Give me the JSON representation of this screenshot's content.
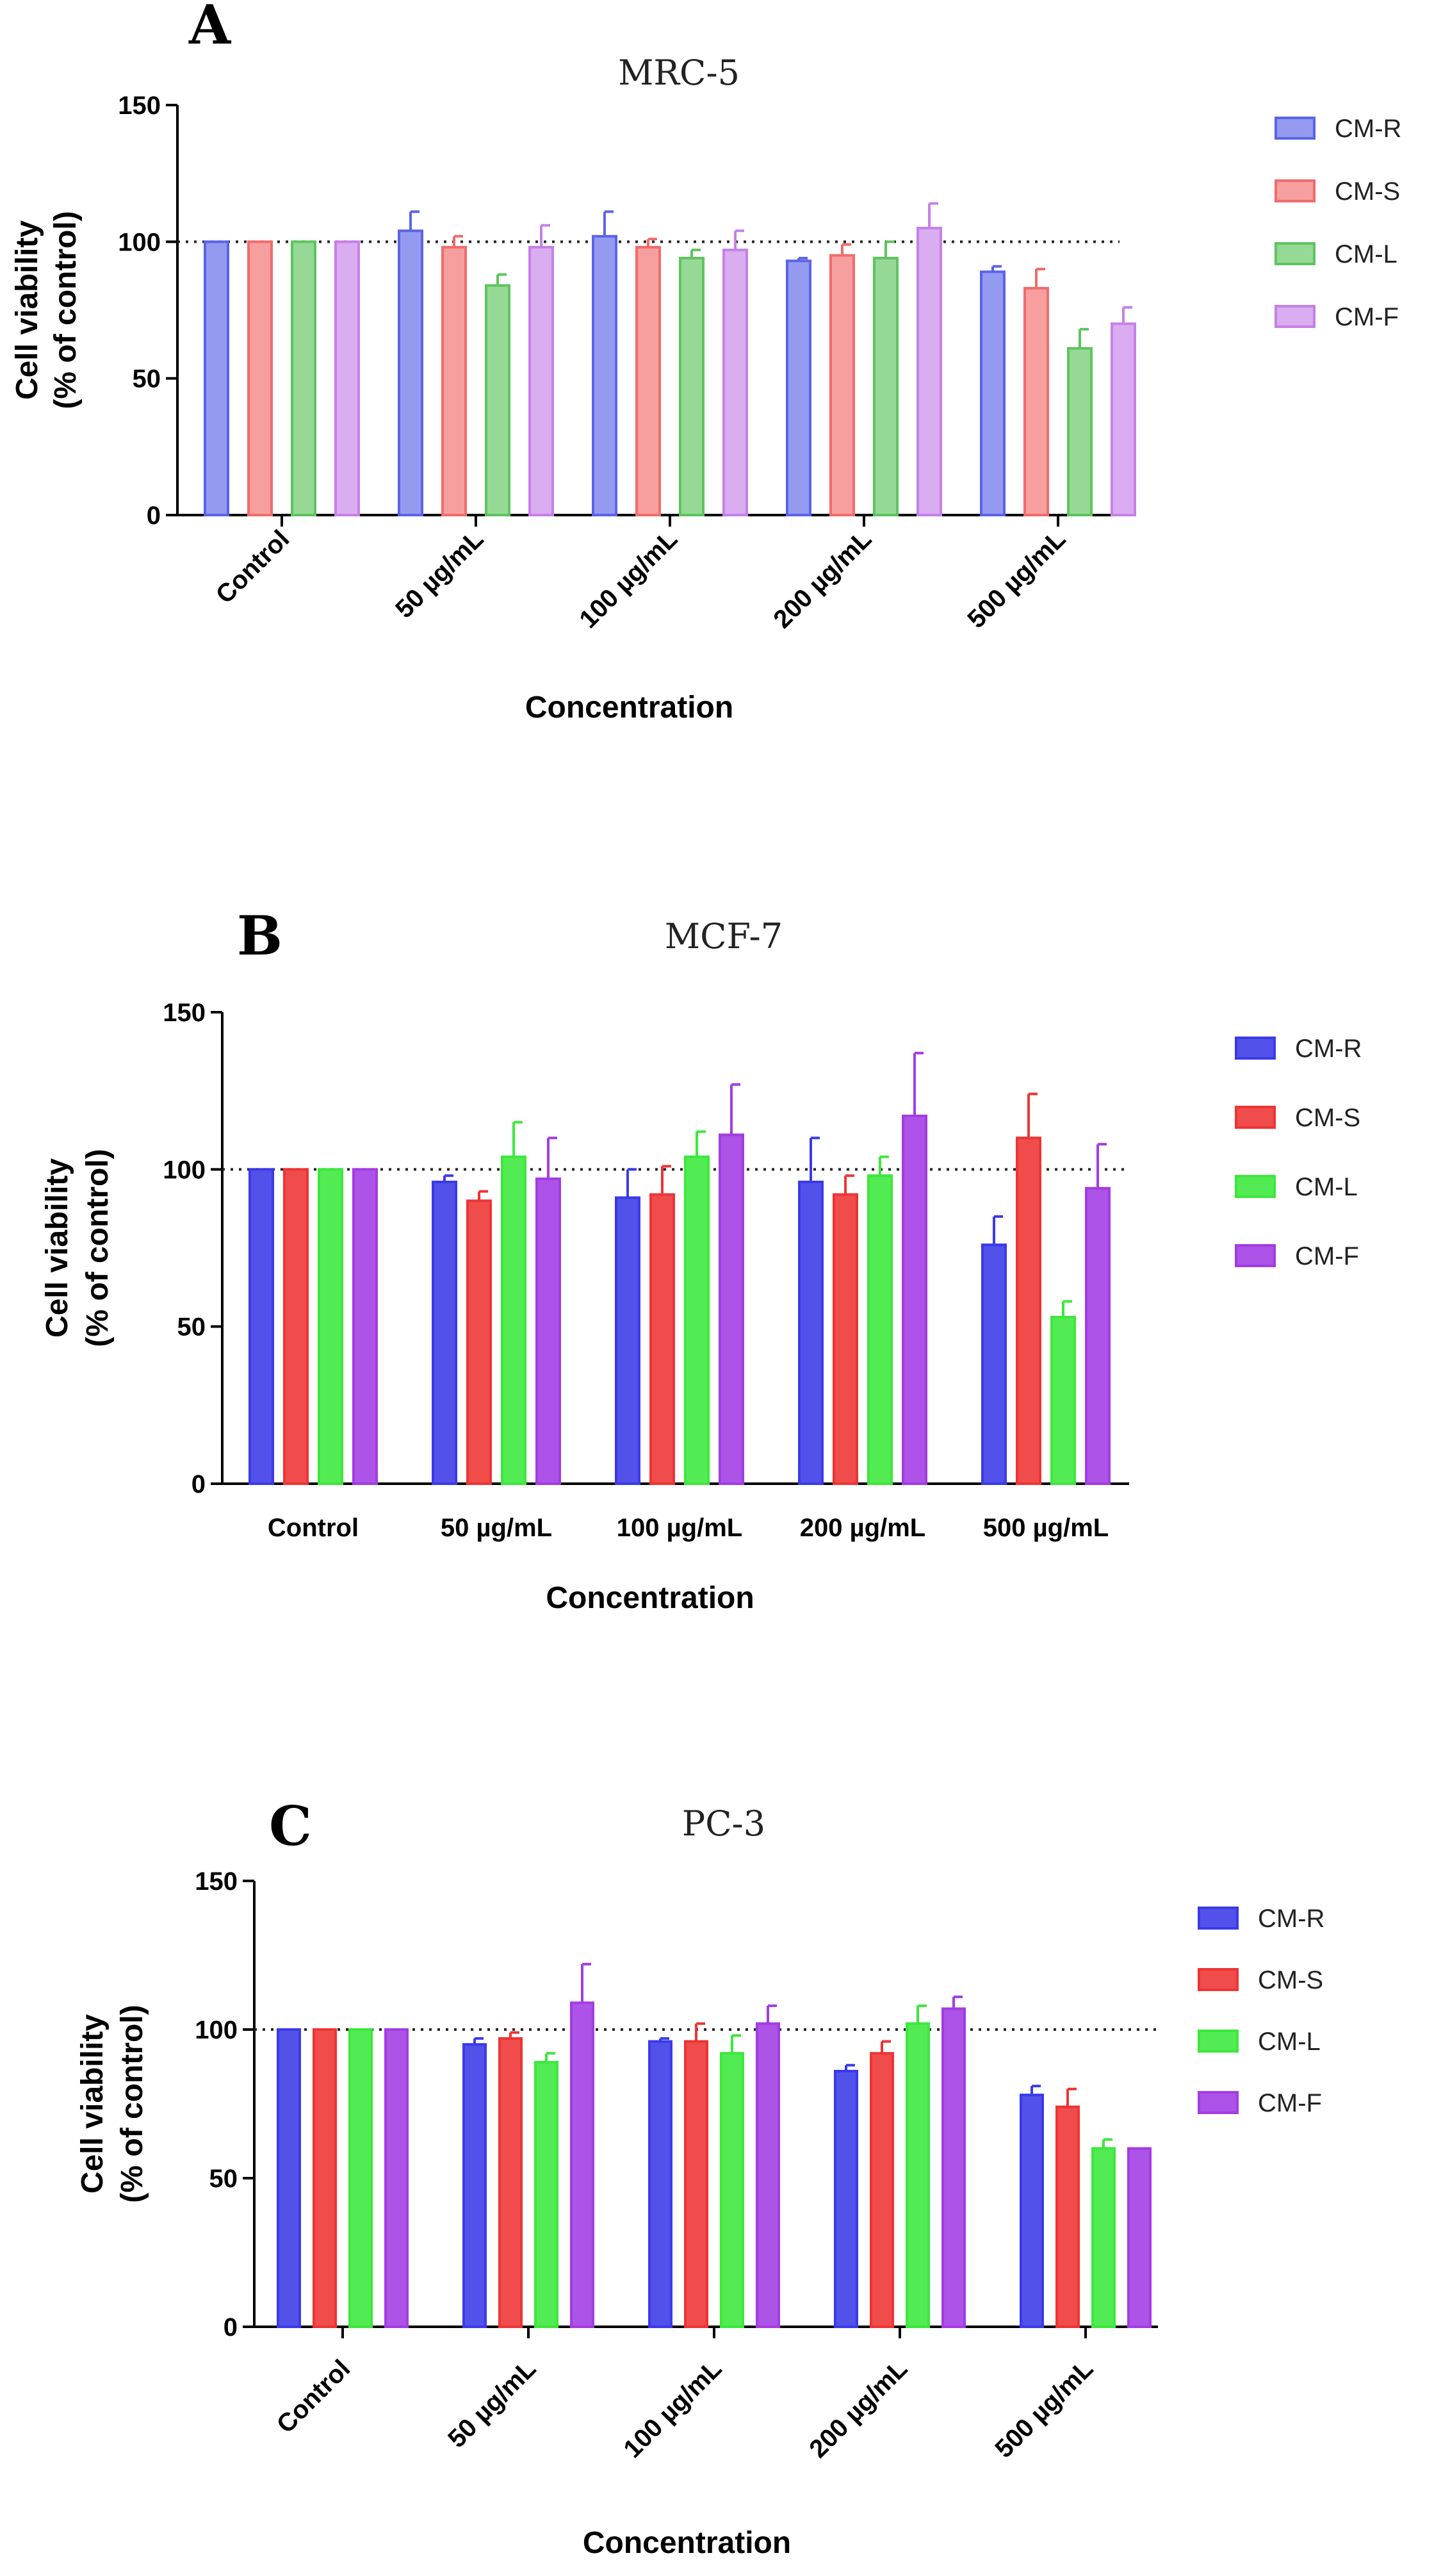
{
  "chart_data": [
    {
      "type": "bar",
      "panel": "A",
      "title": "MRC-5",
      "xlabel": "Concentration",
      "ylabel_line1": "Cell viability",
      "ylabel_line2": "(% of control)",
      "ylim": [
        0,
        150
      ],
      "yticks": [
        "0",
        "50",
        "100",
        "150"
      ],
      "reference_line": 100,
      "categories": [
        "Control",
        "50 µg/mL",
        "100 µg/mL",
        "200 µg/mL",
        "500 µg/mL"
      ],
      "category_label_rotation": -45,
      "series": [
        {
          "name": "CM-R",
          "color": "#5b63e8",
          "values": [
            100,
            104,
            102,
            93,
            89
          ],
          "errors": [
            0,
            7,
            9,
            1,
            2
          ]
        },
        {
          "name": "CM-S",
          "color": "#f26b6b",
          "values": [
            100,
            98,
            98,
            95,
            83
          ],
          "errors": [
            0,
            4,
            3,
            4,
            7
          ]
        },
        {
          "name": "CM-L",
          "color": "#5ec45e",
          "values": [
            100,
            84,
            94,
            94,
            61
          ],
          "errors": [
            0,
            4,
            3,
            6,
            7
          ]
        },
        {
          "name": "CM-F",
          "color": "#c680e8",
          "values": [
            100,
            98,
            97,
            105,
            70
          ],
          "errors": [
            0,
            8,
            7,
            9,
            6
          ]
        }
      ]
    },
    {
      "type": "bar",
      "panel": "B",
      "title": "MCF-7",
      "xlabel": "Concentration",
      "ylabel_line1": "Cell viability",
      "ylabel_line2": "(% of control)",
      "ylim": [
        0,
        150
      ],
      "yticks": [
        "0",
        "50",
        "100",
        "150"
      ],
      "reference_line": 100,
      "categories": [
        "Control",
        "50 µg/mL",
        "100 µg/mL",
        "200 µg/mL",
        "500 µg/mL"
      ],
      "category_label_rotation": 0,
      "series": [
        {
          "name": "CM-R",
          "color": "#3a3ae8",
          "values": [
            100,
            96,
            91,
            96,
            76
          ],
          "errors": [
            0,
            2,
            9,
            14,
            9
          ]
        },
        {
          "name": "CM-S",
          "color": "#ee3434",
          "values": [
            100,
            90,
            92,
            92,
            110
          ],
          "errors": [
            0,
            3,
            9,
            6,
            14
          ]
        },
        {
          "name": "CM-L",
          "color": "#3ce83c",
          "values": [
            100,
            104,
            104,
            98,
            53
          ],
          "errors": [
            0,
            11,
            8,
            6,
            5
          ]
        },
        {
          "name": "CM-F",
          "color": "#a23ce4",
          "values": [
            100,
            97,
            111,
            117,
            94
          ],
          "errors": [
            0,
            13,
            16,
            20,
            14
          ]
        }
      ]
    },
    {
      "type": "bar",
      "panel": "C",
      "title": "PC-3",
      "xlabel": "Concentration",
      "ylabel_line1": "Cell viability",
      "ylabel_line2": "(% of control)",
      "ylim": [
        0,
        150
      ],
      "yticks": [
        "0",
        "50",
        "100",
        "150"
      ],
      "reference_line": 100,
      "categories": [
        "Control",
        "50 µg/mL",
        "100 µg/mL",
        "200 µg/mL",
        "500 µg/mL"
      ],
      "category_label_rotation": -45,
      "series": [
        {
          "name": "CM-R",
          "color": "#3a3ae8",
          "values": [
            100,
            95,
            96,
            86,
            78
          ],
          "errors": [
            0,
            2,
            1,
            2,
            3
          ]
        },
        {
          "name": "CM-S",
          "color": "#ee3434",
          "values": [
            100,
            97,
            96,
            92,
            74
          ],
          "errors": [
            0,
            2,
            6,
            4,
            6
          ]
        },
        {
          "name": "CM-L",
          "color": "#3ce83c",
          "values": [
            100,
            89,
            92,
            102,
            60
          ],
          "errors": [
            0,
            3,
            6,
            6,
            3
          ]
        },
        {
          "name": "CM-F",
          "color": "#a23ce4",
          "values": [
            100,
            109,
            102,
            107,
            60
          ],
          "errors": [
            0,
            13,
            6,
            4,
            0
          ]
        }
      ]
    }
  ]
}
